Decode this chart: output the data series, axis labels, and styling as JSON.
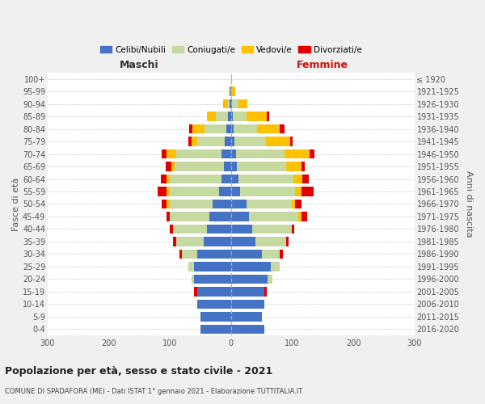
{
  "age_groups": [
    "0-4",
    "5-9",
    "10-14",
    "15-19",
    "20-24",
    "25-29",
    "30-34",
    "35-39",
    "40-44",
    "45-49",
    "50-54",
    "55-59",
    "60-64",
    "65-69",
    "70-74",
    "75-79",
    "80-84",
    "85-89",
    "90-94",
    "95-99",
    "100+"
  ],
  "birth_years": [
    "2016-2020",
    "2011-2015",
    "2006-2010",
    "2001-2005",
    "1996-2000",
    "1991-1995",
    "1986-1990",
    "1981-1985",
    "1976-1980",
    "1971-1975",
    "1966-1970",
    "1961-1965",
    "1956-1960",
    "1951-1955",
    "1946-1950",
    "1941-1945",
    "1936-1940",
    "1931-1935",
    "1926-1930",
    "1921-1925",
    "≤ 1920"
  ],
  "males_celibi": [
    50,
    50,
    55,
    55,
    60,
    60,
    55,
    45,
    40,
    35,
    30,
    20,
    15,
    12,
    15,
    10,
    8,
    5,
    2,
    1,
    0
  ],
  "males_coniugati": [
    0,
    0,
    0,
    0,
    5,
    10,
    25,
    45,
    55,
    65,
    70,
    80,
    85,
    80,
    75,
    45,
    35,
    20,
    3,
    1,
    0
  ],
  "males_vedovi": [
    0,
    0,
    0,
    0,
    0,
    0,
    0,
    0,
    0,
    0,
    5,
    5,
    5,
    5,
    15,
    10,
    20,
    15,
    8,
    2,
    0
  ],
  "males_divorziati": [
    0,
    0,
    0,
    5,
    0,
    0,
    5,
    5,
    5,
    5,
    8,
    15,
    10,
    10,
    8,
    5,
    5,
    0,
    0,
    0,
    0
  ],
  "females_celibi": [
    55,
    50,
    55,
    55,
    60,
    65,
    50,
    40,
    35,
    30,
    25,
    15,
    12,
    10,
    8,
    5,
    4,
    3,
    2,
    0,
    0
  ],
  "females_coniugati": [
    0,
    0,
    0,
    0,
    8,
    15,
    30,
    50,
    65,
    80,
    75,
    90,
    90,
    80,
    80,
    52,
    38,
    22,
    10,
    2,
    0
  ],
  "females_vedovi": [
    0,
    0,
    0,
    0,
    0,
    0,
    0,
    0,
    0,
    5,
    5,
    10,
    15,
    25,
    40,
    40,
    38,
    34,
    15,
    5,
    2
  ],
  "females_divorziati": [
    0,
    0,
    0,
    4,
    0,
    0,
    5,
    4,
    4,
    10,
    10,
    20,
    10,
    5,
    8,
    4,
    8,
    4,
    0,
    0,
    0
  ],
  "color_celibi": "#4472c4",
  "color_coniugati": "#c5d9a0",
  "color_vedovi": "#ffc000",
  "color_divorziati": "#e00000",
  "title": "Popolazione per età, sesso e stato civile - 2021",
  "subtitle": "COMUNE DI SPADAFORA (ME) - Dati ISTAT 1° gennaio 2021 - Elaborazione TUTTITALIA.IT",
  "label_maschi": "Maschi",
  "label_femmine": "Femmine",
  "ylabel_left": "Fasce di età",
  "ylabel_right": "Anni di nascita",
  "legend_labels": [
    "Celibi/Nubili",
    "Coniugati/e",
    "Vedovi/e",
    "Divorziati/e"
  ],
  "xlim": 300,
  "bg_color": "#f0f0f0",
  "plot_bg_color": "#ffffff"
}
